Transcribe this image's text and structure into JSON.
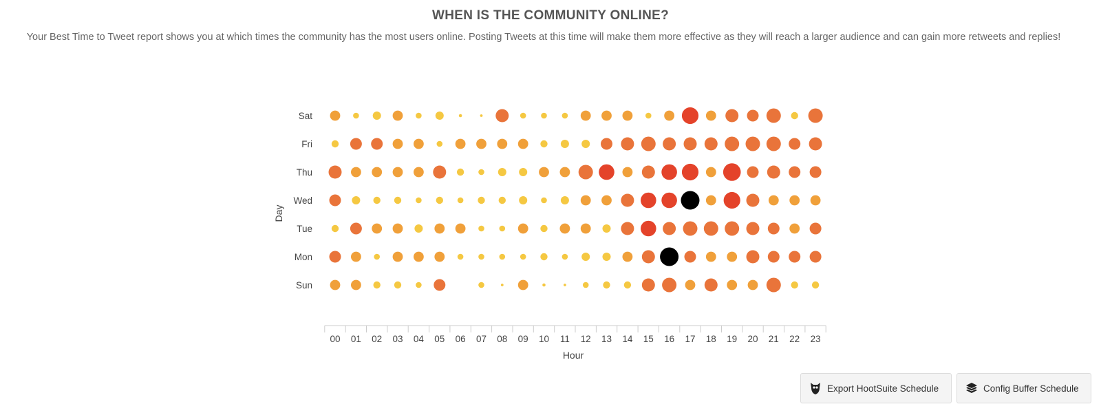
{
  "header": {
    "title": "WHEN IS THE COMMUNITY ONLINE?",
    "subtitle": "Your Best Time to Tweet report shows you at which times the community has the most users online. Posting Tweets at this time will make them more effective as they will reach a larger audience and can gain more retweets and replies!"
  },
  "buttons": {
    "hootsuite_label": "Export HootSuite Schedule",
    "buffer_label": "Config Buffer Schedule",
    "hootsuite_icon": "owl-icon",
    "buffer_icon": "layers-icon"
  },
  "chart_data": {
    "type": "scatter",
    "subtype": "punchcard",
    "xlabel": "Hour",
    "ylabel": "Day",
    "x": [
      "00",
      "01",
      "02",
      "03",
      "04",
      "05",
      "06",
      "07",
      "08",
      "09",
      "10",
      "11",
      "12",
      "13",
      "14",
      "15",
      "16",
      "17",
      "18",
      "19",
      "20",
      "21",
      "22",
      "23"
    ],
    "y": [
      "Sat",
      "Fri",
      "Thu",
      "Wed",
      "Tue",
      "Mon",
      "Sun"
    ],
    "value_scale": "relative activity level 0-10 (10 = peak, drawn black)",
    "values": [
      [
        3,
        1,
        2,
        3,
        1,
        2,
        0.3,
        0.2,
        5,
        1,
        1,
        1,
        3,
        3,
        3,
        1,
        3,
        8,
        3,
        5,
        4,
        6,
        1.5,
        6
      ],
      [
        1.5,
        4,
        4,
        3,
        3,
        1,
        3,
        3,
        3,
        3,
        1.5,
        2,
        2,
        4,
        5,
        6,
        5,
        5,
        5,
        6,
        6,
        6,
        4,
        5
      ],
      [
        5,
        3,
        3,
        3,
        3,
        5,
        1.5,
        1,
        2,
        2,
        3,
        3,
        6,
        7,
        3,
        5,
        7,
        8,
        3,
        9,
        4,
        5,
        4,
        4
      ],
      [
        4,
        2,
        1.5,
        1.5,
        1,
        1.5,
        1,
        1.5,
        1.5,
        2,
        1,
        2,
        3,
        3,
        5,
        7,
        7,
        10,
        3,
        8,
        5,
        3,
        3,
        3
      ],
      [
        1.5,
        4,
        3,
        3,
        2,
        3,
        3,
        1,
        1,
        3,
        1.5,
        3,
        3,
        2,
        5,
        7,
        5,
        6,
        6,
        6,
        5,
        4,
        3,
        4
      ],
      [
        4,
        3,
        1,
        3,
        3,
        3,
        1,
        1,
        1,
        1,
        1.5,
        1,
        2,
        2,
        3,
        5,
        10,
        4,
        3,
        3,
        5,
        4,
        4,
        4
      ],
      [
        3,
        3,
        1.5,
        1.5,
        1,
        4,
        0,
        1,
        0.2,
        3,
        0.3,
        0.2,
        1,
        1.5,
        1.5,
        5,
        6,
        3,
        5,
        3,
        3,
        6,
        1.5,
        1.5
      ]
    ],
    "colors": {
      "low": "#f5c842",
      "mid": "#f0a03a",
      "high": "#e9743a",
      "peak": "#e4432a",
      "max": "#000000"
    },
    "grid": false,
    "legend": "none"
  }
}
